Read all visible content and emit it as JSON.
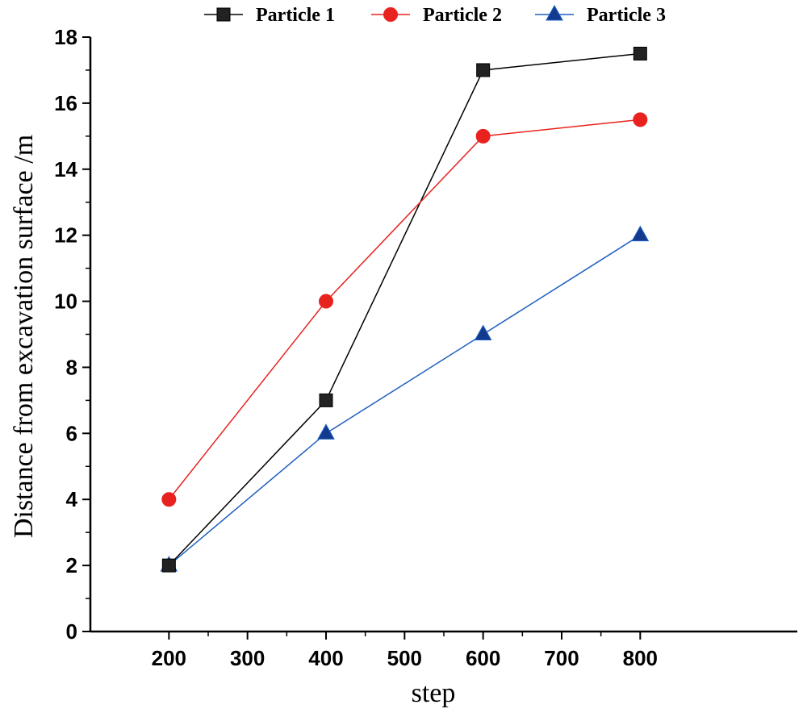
{
  "chart_data": {
    "type": "line",
    "title": "",
    "xlabel": "step",
    "ylabel": "Distance from excavation surface /m",
    "xlim": [
      100,
      1000
    ],
    "ylim": [
      0,
      18
    ],
    "xticks": [
      200,
      300,
      400,
      500,
      600,
      700,
      800
    ],
    "yticks": [
      0,
      2,
      4,
      6,
      8,
      10,
      12,
      14,
      16,
      18
    ],
    "x": [
      200,
      400,
      600,
      800
    ],
    "grid": false,
    "legend_position": "top",
    "series": [
      {
        "name": "Particle 1",
        "color": "#000000",
        "marker": "square",
        "fill": "#222222",
        "values": [
          2,
          7,
          17,
          17.5
        ]
      },
      {
        "name": "Particle 2",
        "color": "#e8221e",
        "marker": "circle",
        "fill": "#e8221e",
        "values": [
          4,
          10,
          15,
          15.5
        ]
      },
      {
        "name": "Particle 3",
        "color": "#1f5fbf",
        "marker": "triangle",
        "fill": "#123b8f",
        "values": [
          2,
          6,
          9,
          12
        ]
      }
    ]
  }
}
